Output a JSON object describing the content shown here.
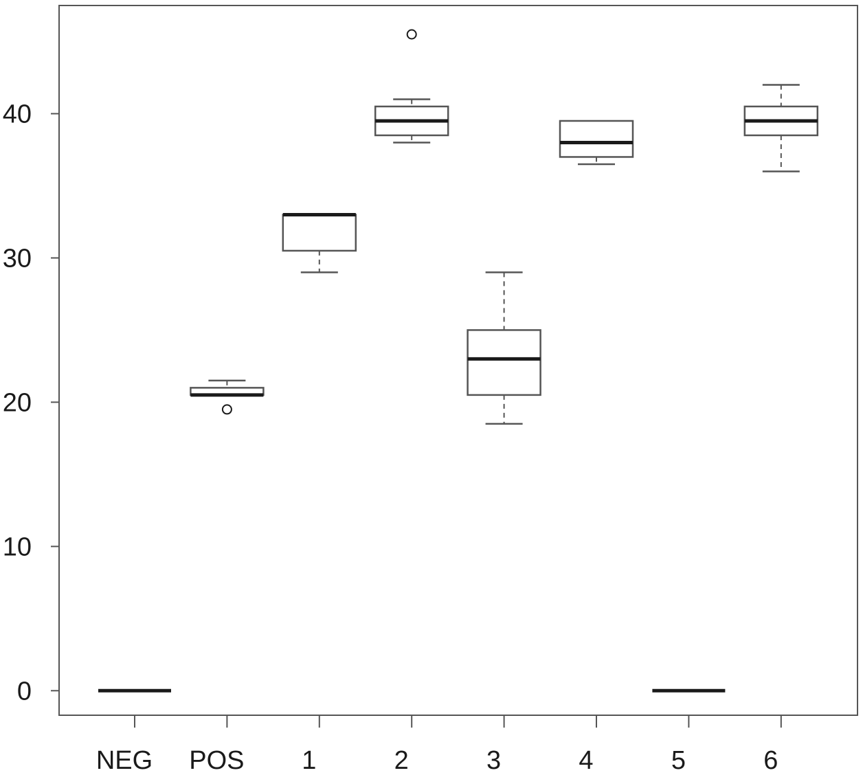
{
  "chart_data": {
    "type": "boxplot",
    "title": "",
    "xlabel": "",
    "ylabel": "",
    "ylim": [
      -1.7,
      47.5
    ],
    "yticks": [
      0,
      10,
      20,
      30,
      40
    ],
    "ytick_labels": [
      "0",
      "10",
      "20",
      "30",
      "40"
    ],
    "grid": false,
    "categories": [
      "NEG",
      "POS",
      "1",
      "2",
      "3",
      "4",
      "5",
      "6"
    ],
    "boxes": [
      {
        "category": "NEG",
        "whisker_low": 0,
        "q1": 0,
        "median": 0,
        "q3": 0,
        "whisker_high": 0,
        "outliers": []
      },
      {
        "category": "POS",
        "whisker_low": 20.5,
        "q1": 20.5,
        "median": 20.5,
        "q3": 21,
        "whisker_high": 21.5,
        "outliers": [
          19.5
        ]
      },
      {
        "category": "1",
        "whisker_low": 29,
        "q1": 30.5,
        "median": 33,
        "q3": 33,
        "whisker_high": 33,
        "outliers": []
      },
      {
        "category": "2",
        "whisker_low": 38,
        "q1": 38.5,
        "median": 39.5,
        "q3": 40.5,
        "whisker_high": 41,
        "outliers": [
          45.5
        ]
      },
      {
        "category": "3",
        "whisker_low": 18.5,
        "q1": 20.5,
        "median": 23,
        "q3": 25,
        "whisker_high": 29,
        "outliers": []
      },
      {
        "category": "4",
        "whisker_low": 36.5,
        "q1": 37,
        "median": 38,
        "q3": 39.5,
        "whisker_high": 39.5,
        "outliers": []
      },
      {
        "category": "5",
        "whisker_low": 0,
        "q1": 0,
        "median": 0,
        "q3": 0,
        "whisker_high": 0,
        "outliers": []
      },
      {
        "category": "6",
        "whisker_low": 36,
        "q1": 38.5,
        "median": 39.5,
        "q3": 40.5,
        "whisker_high": 42,
        "outliers": []
      }
    ]
  }
}
